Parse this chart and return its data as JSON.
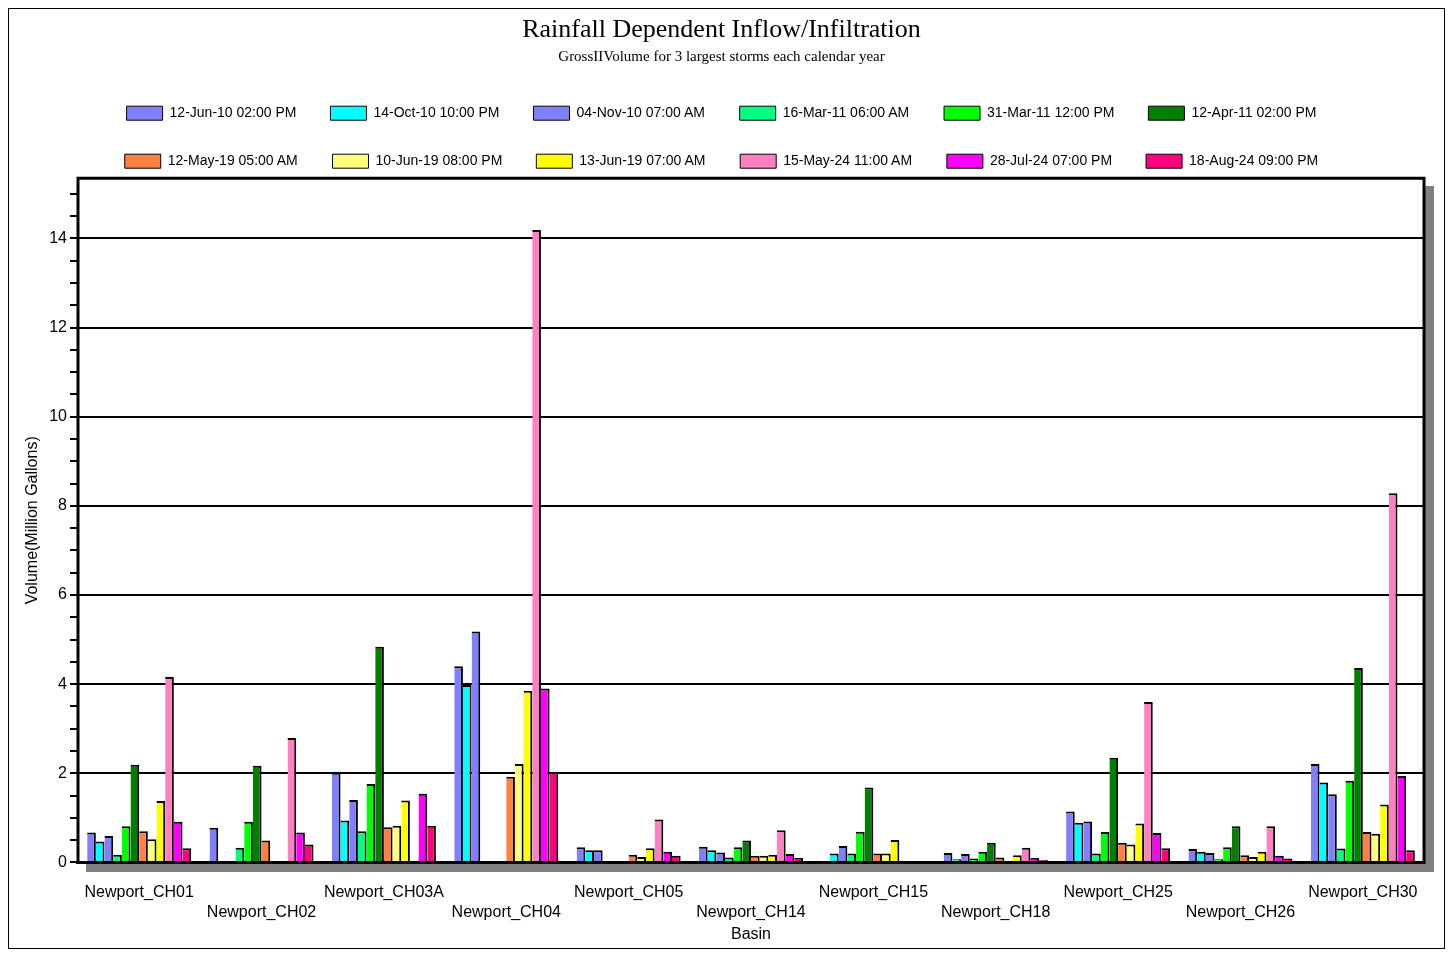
{
  "chart_data": {
    "type": "bar",
    "title": "Rainfall Dependent Inflow/Infiltration",
    "subtitle": "GrossIIVolume for 3 largest storms each calendar year",
    "xlabel": "Basin",
    "ylabel": "Volume(Million Gallons)",
    "categories": [
      "Newport_CH01",
      "Newport_CH02",
      "Newport_CH03A",
      "Newport_CH04",
      "Newport_CH05",
      "Newport_CH14",
      "Newport_CH15",
      "Newport_CH18",
      "Newport_CH25",
      "Newport_CH26",
      "Newport_CH30"
    ],
    "series": [
      {
        "name": "12-Jun-10 02:00 PM",
        "color": "#8080ff",
        "values": [
          0.67,
          0.78,
          2.01,
          4.4,
          0.34,
          0.35,
          null,
          0.21,
          1.14,
          0.3,
          2.21
        ]
      },
      {
        "name": "14-Oct-10 10:00 PM",
        "color": "#00ffff",
        "values": [
          0.47,
          null,
          0.94,
          3.98,
          0.27,
          0.27,
          0.2,
          0.07,
          0.89,
          0.24,
          1.79
        ]
      },
      {
        "name": "04-Nov-10 07:00 AM",
        "color": "#8080ff",
        "values": [
          0.59,
          null,
          1.4,
          5.18,
          0.27,
          0.22,
          0.37,
          0.19,
          0.92,
          0.21,
          1.53
        ]
      },
      {
        "name": "16-Mar-11 06:00 AM",
        "color": "#00ff80",
        "values": [
          0.17,
          0.33,
          0.7,
          null,
          null,
          0.11,
          0.2,
          0.09,
          0.2,
          0.07,
          0.31
        ]
      },
      {
        "name": "31-Mar-11 12:00 PM",
        "color": "#00ff00",
        "values": [
          0.81,
          0.91,
          1.76,
          null,
          null,
          0.34,
          0.69,
          0.24,
          0.68,
          0.34,
          1.83
        ]
      },
      {
        "name": "12-Apr-11 02:00 PM",
        "color": "#008000",
        "values": [
          2.19,
          2.17,
          4.84,
          null,
          null,
          0.49,
          1.68,
          0.44,
          2.35,
          0.81,
          4.36
        ]
      },
      {
        "name": "12-May-19 05:00 AM",
        "color": "#ff8040",
        "values": [
          0.7,
          0.49,
          0.79,
          1.92,
          0.17,
          0.15,
          0.2,
          0.11,
          0.44,
          0.16,
          0.68
        ]
      },
      {
        "name": "10-Jun-19 08:00 PM",
        "color": "#ffff80",
        "values": [
          0.52,
          null,
          0.82,
          2.21,
          0.12,
          0.15,
          0.2,
          null,
          0.4,
          0.12,
          0.64
        ]
      },
      {
        "name": "13-Jun-19 07:00 AM",
        "color": "#ffff00",
        "values": [
          1.38,
          null,
          1.39,
          3.85,
          0.32,
          0.17,
          0.5,
          0.16,
          0.87,
          0.24,
          1.3
        ]
      },
      {
        "name": "15-May-24 11:00 AM",
        "color": "#ff80c0",
        "values": [
          4.16,
          2.79,
          null,
          14.19,
          0.96,
          0.72,
          null,
          0.33,
          3.6,
          0.81,
          8.28
        ]
      },
      {
        "name": "28-Jul-24 07:00 PM",
        "color": "#ff00ff",
        "values": [
          0.91,
          0.67,
          1.54,
          3.9,
          0.24,
          0.19,
          null,
          0.1,
          0.66,
          0.15,
          1.94
        ]
      },
      {
        "name": "18-Aug-24 09:00 PM",
        "color": "#ff0080",
        "values": [
          0.32,
          0.4,
          0.82,
          2.03,
          0.15,
          0.1,
          null,
          0.06,
          0.32,
          0.09,
          0.27
        ]
      }
    ],
    "ylim": [
      0,
      15.35
    ],
    "yticks": [
      0,
      {
        "value": 0.5,
        "label": null
      },
      {
        "value": 1,
        "label": null
      },
      {
        "value": 1.5,
        "label": null
      },
      2,
      {
        "value": 2.5,
        "label": null
      },
      {
        "value": 3,
        "label": null
      },
      {
        "value": 3.5,
        "label": null
      },
      4,
      {
        "value": 4.5,
        "label": null
      },
      {
        "value": 5,
        "label": null
      },
      {
        "value": 5.5,
        "label": null
      },
      6,
      {
        "value": 6.5,
        "label": null
      },
      {
        "value": 7,
        "label": null
      },
      {
        "value": 7.5,
        "label": null
      },
      8,
      {
        "value": 8.5,
        "label": null
      },
      {
        "value": 9,
        "label": null
      },
      {
        "value": 9.5,
        "label": null
      },
      10,
      {
        "value": 10.5,
        "label": null
      },
      {
        "value": 11,
        "label": null
      },
      {
        "value": 11.5,
        "label": null
      },
      12,
      {
        "value": 12.5,
        "label": null
      },
      {
        "value": 13,
        "label": null
      },
      {
        "value": 13.5,
        "label": null
      },
      14,
      {
        "value": 14.5,
        "label": null
      },
      {
        "value": 15,
        "label": null
      }
    ],
    "grid": "y",
    "legend": "top"
  }
}
